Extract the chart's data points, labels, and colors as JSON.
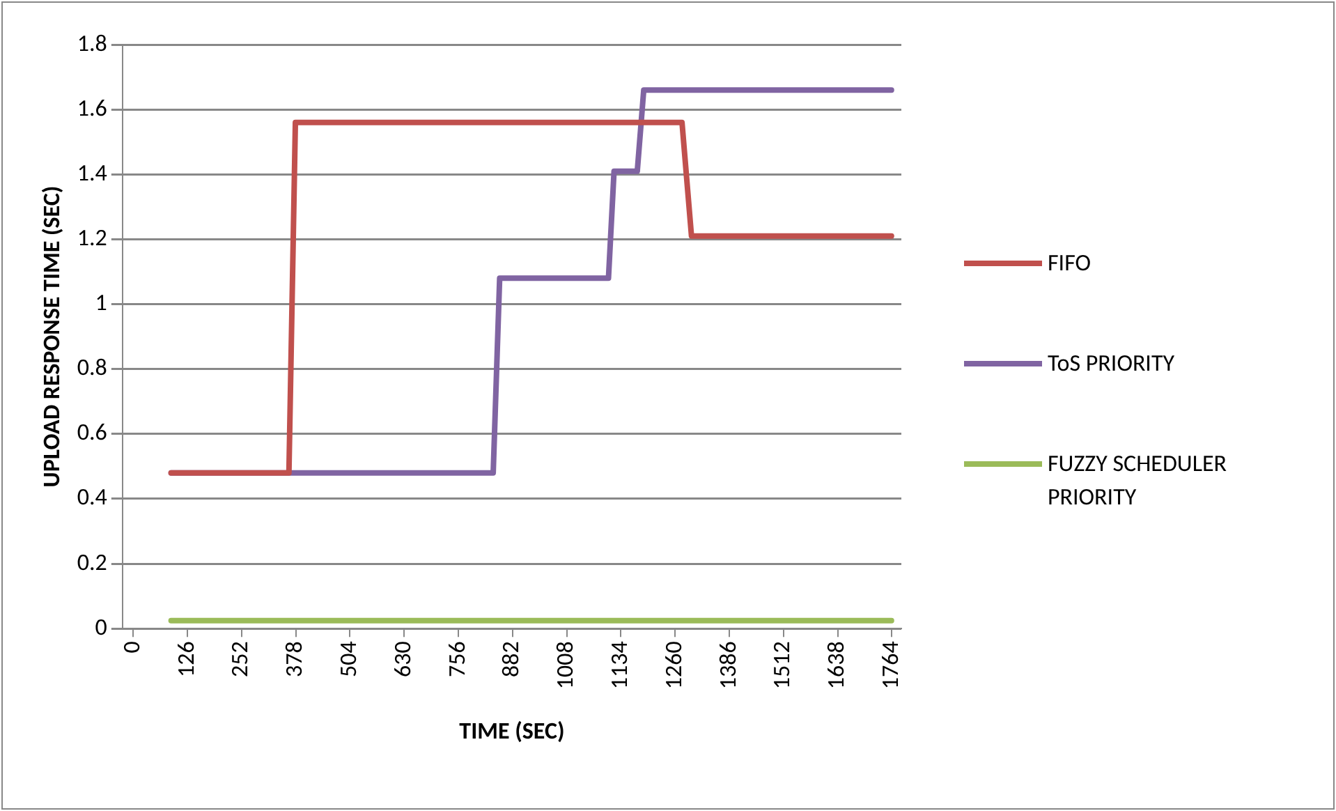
{
  "chart_data": {
    "type": "line",
    "xlabel": "TIME (SEC)",
    "ylabel": "UPLOAD RESPONSE TIME (SEC)",
    "xlim": [
      -25,
      1786
    ],
    "xticks": [
      0,
      126,
      252,
      378,
      504,
      630,
      756,
      882,
      1008,
      1134,
      1260,
      1386,
      1512,
      1638,
      1764
    ],
    "ylim": [
      0,
      1.8
    ],
    "yticks": [
      0,
      0.2,
      0.4,
      0.6,
      0.8,
      1,
      1.2,
      1.4,
      1.6,
      1.8
    ],
    "grid": "y",
    "legend": "right",
    "marker": "none",
    "line_style": "solid",
    "series": [
      {
        "name": "FIFO",
        "color": "#c0504d",
        "x": [
          88,
          362,
          377,
          1276,
          1298,
          1763
        ],
        "values": [
          0.48,
          0.48,
          1.56,
          1.56,
          1.21,
          1.21
        ]
      },
      {
        "name": "ToS PRIORITY",
        "color": "#8064a2",
        "x": [
          88,
          837,
          852,
          1105,
          1118,
          1172,
          1187,
          1763
        ],
        "values": [
          0.48,
          0.48,
          1.08,
          1.08,
          1.41,
          1.41,
          1.66,
          1.66
        ]
      },
      {
        "name": "FUZZY SCHEDULER PRIORITY",
        "color": "#9bbb59",
        "x": [
          88,
          1763
        ],
        "values": [
          0.025,
          0.025
        ]
      }
    ]
  }
}
